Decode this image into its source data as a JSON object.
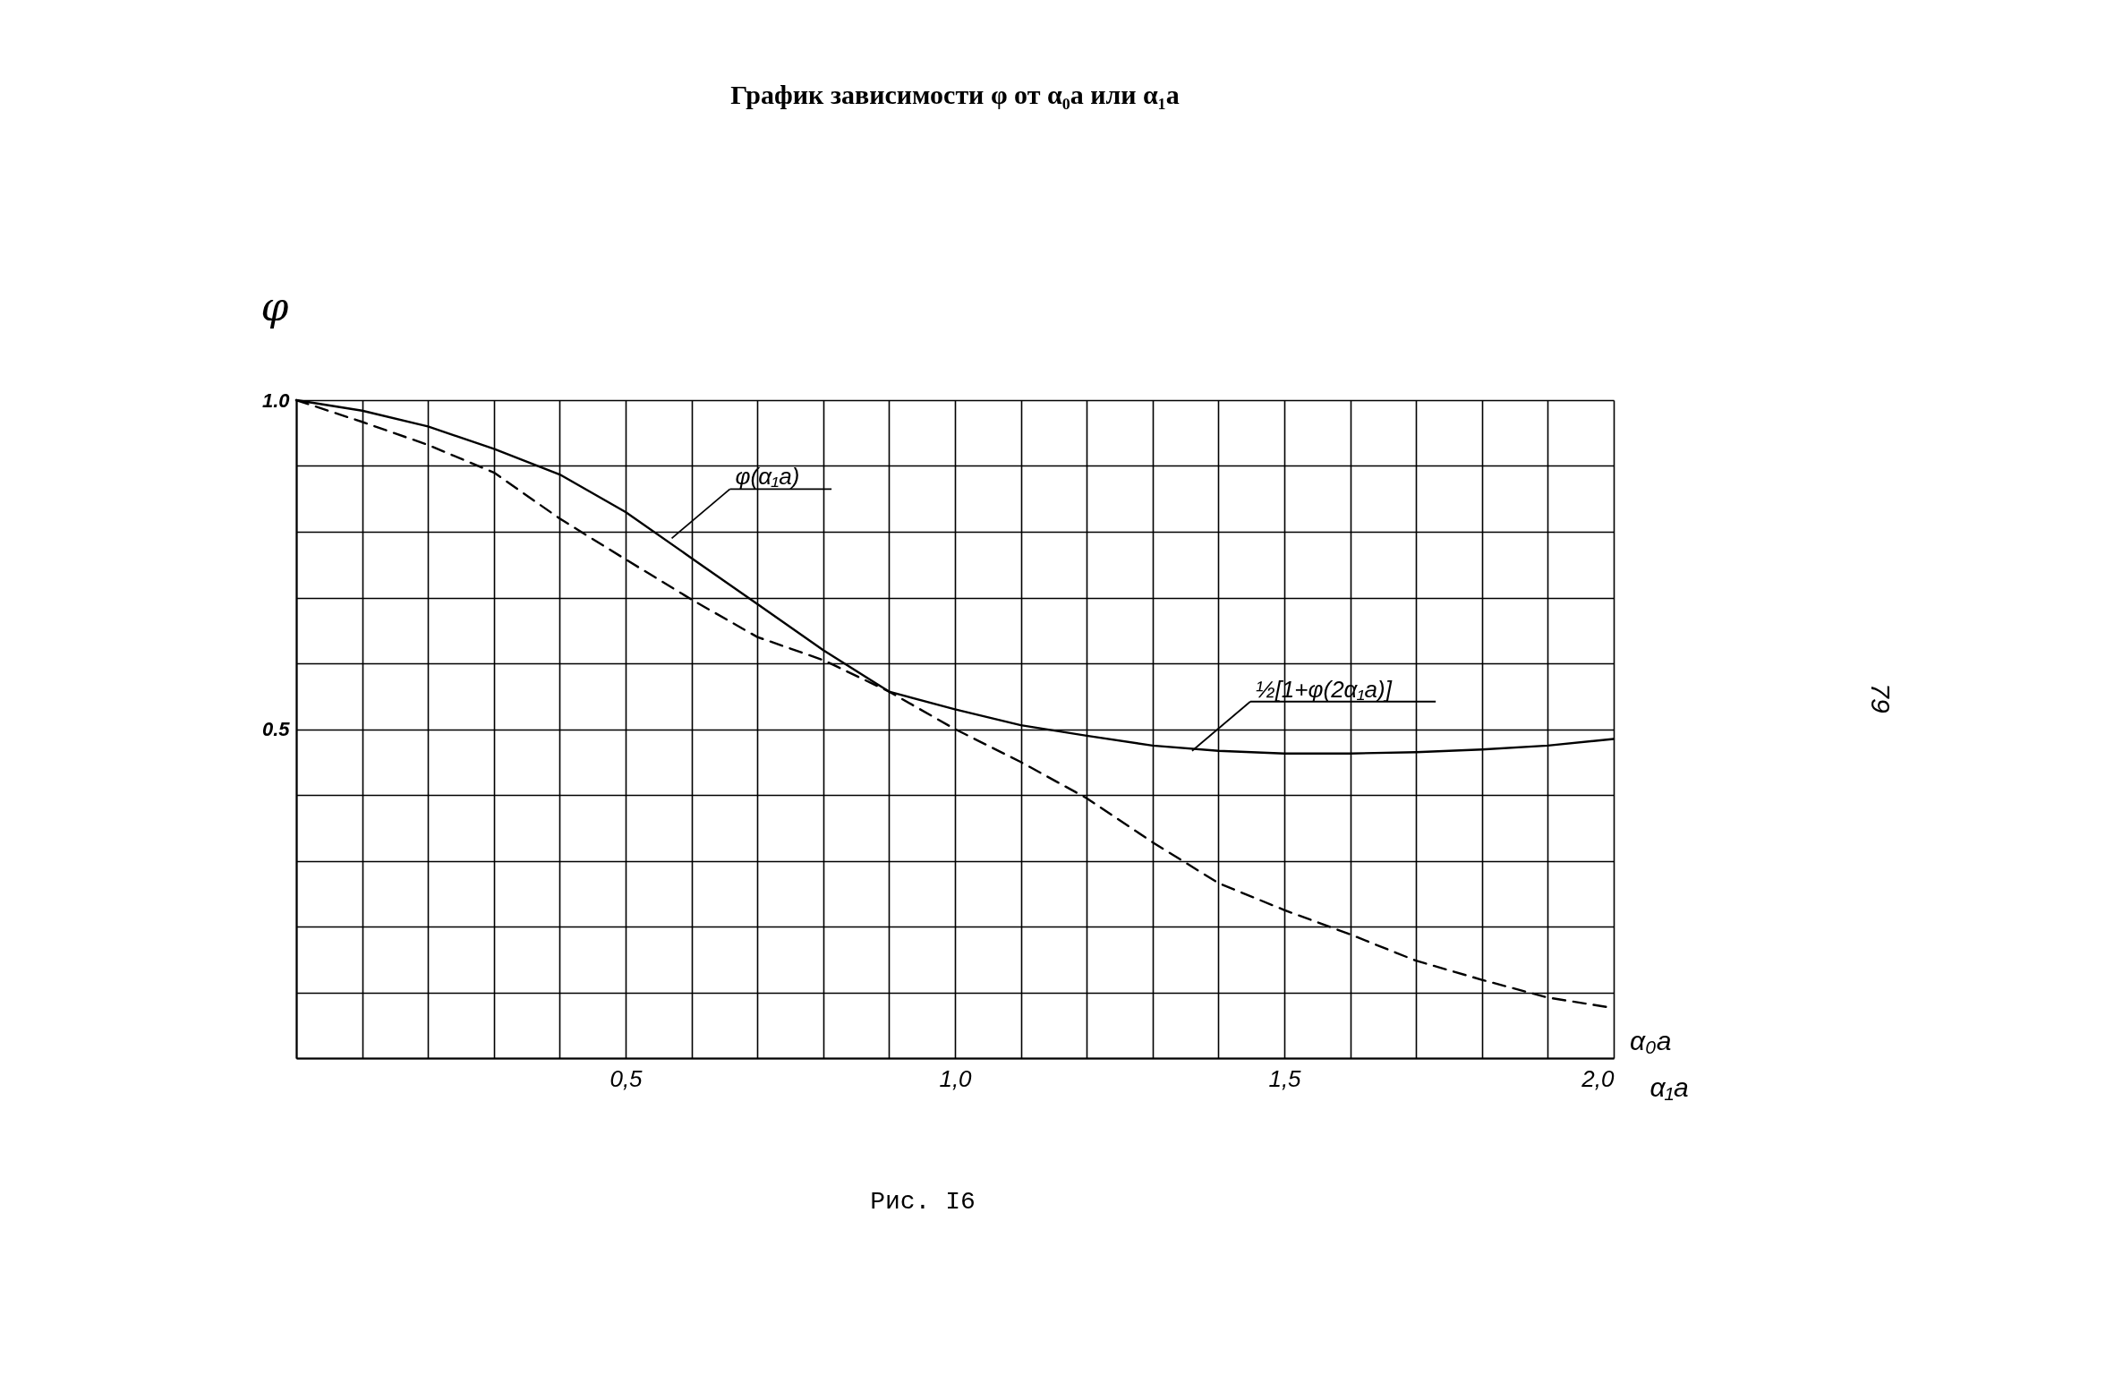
{
  "chart_data": {
    "type": "line",
    "title": "График зависимости φ от α₀a или α₁a",
    "xlabel": "α₁a",
    "ylabel": "φ",
    "x": [
      0,
      0.1,
      0.2,
      0.3,
      0.4,
      0.5,
      0.6,
      0.7,
      0.8,
      0.9,
      1.0,
      1.1,
      1.2,
      1.3,
      1.4,
      1.5,
      1.6,
      1.7,
      1.8,
      1.9,
      2.0
    ],
    "series": [
      {
        "color": "#000000",
        "line_style": "solid",
        "values": [
          1.0,
          0.984,
          0.96,
          0.926,
          0.887,
          0.83,
          0.76,
          0.69,
          0.62,
          0.557,
          0.53,
          0.506,
          0.49,
          0.475,
          0.467,
          0.463,
          0.463,
          0.465,
          0.469,
          0.475,
          0.485
        ]
      },
      {
        "color": "#000000",
        "line_style": "dashed",
        "values": [
          1.0,
          0.967,
          0.932,
          0.89,
          0.82,
          0.758,
          0.697,
          0.64,
          0.605,
          0.557,
          0.5,
          0.45,
          0.395,
          0.328,
          0.266,
          0.225,
          0.188,
          0.148,
          0.119,
          0.092,
          0.076
        ]
      }
    ],
    "xlim": [
      0,
      2.0
    ],
    "ylim": [
      0,
      1.0
    ],
    "xticks": [
      {
        "value": 0,
        "label": null
      },
      {
        "value": 0.1,
        "label": null
      },
      {
        "value": 0.2,
        "label": null
      },
      {
        "value": 0.3,
        "label": null
      },
      {
        "value": 0.4,
        "label": null
      },
      {
        "value": 0.5,
        "label": "0,5"
      },
      {
        "value": 0.6,
        "label": null
      },
      {
        "value": 0.7,
        "label": null
      },
      {
        "value": 0.8,
        "label": null
      },
      {
        "value": 0.9,
        "label": null
      },
      {
        "value": 1.0,
        "label": "1,0"
      },
      {
        "value": 1.1,
        "label": null
      },
      {
        "value": 1.2,
        "label": null
      },
      {
        "value": 1.3,
        "label": null
      },
      {
        "value": 1.4,
        "label": null
      },
      {
        "value": 1.5,
        "label": "1,5"
      },
      {
        "value": 1.6,
        "label": null
      },
      {
        "value": 1.7,
        "label": null
      },
      {
        "value": 1.8,
        "label": null
      },
      {
        "value": 1.9,
        "label": null
      },
      {
        "value": 2.0,
        "label": "2,0"
      }
    ],
    "yticks": [
      {
        "value": 0,
        "label": null
      },
      {
        "value": 0.1,
        "label": null
      },
      {
        "value": 0.2,
        "label": null
      },
      {
        "value": 0.3,
        "label": null
      },
      {
        "value": 0.4,
        "label": null
      },
      0.5,
      {
        "value": 0.6,
        "label": null
      },
      {
        "value": 0.7,
        "label": null
      },
      {
        "value": 0.8,
        "label": null
      },
      {
        "value": 0.9,
        "label": null
      },
      {
        "value": 1.0,
        "label": "1.0"
      }
    ],
    "grid": true,
    "marker": "none",
    "annotations": [
      {
        "text": "φ(α₁a)",
        "x": 0.57,
        "y": 0.79
      },
      {
        "text": "½[1+φ(2α₁a)]",
        "x": 1.36,
        "y": 0.467
      },
      "α₀a",
      "Рис. I6",
      "79"
    ]
  }
}
